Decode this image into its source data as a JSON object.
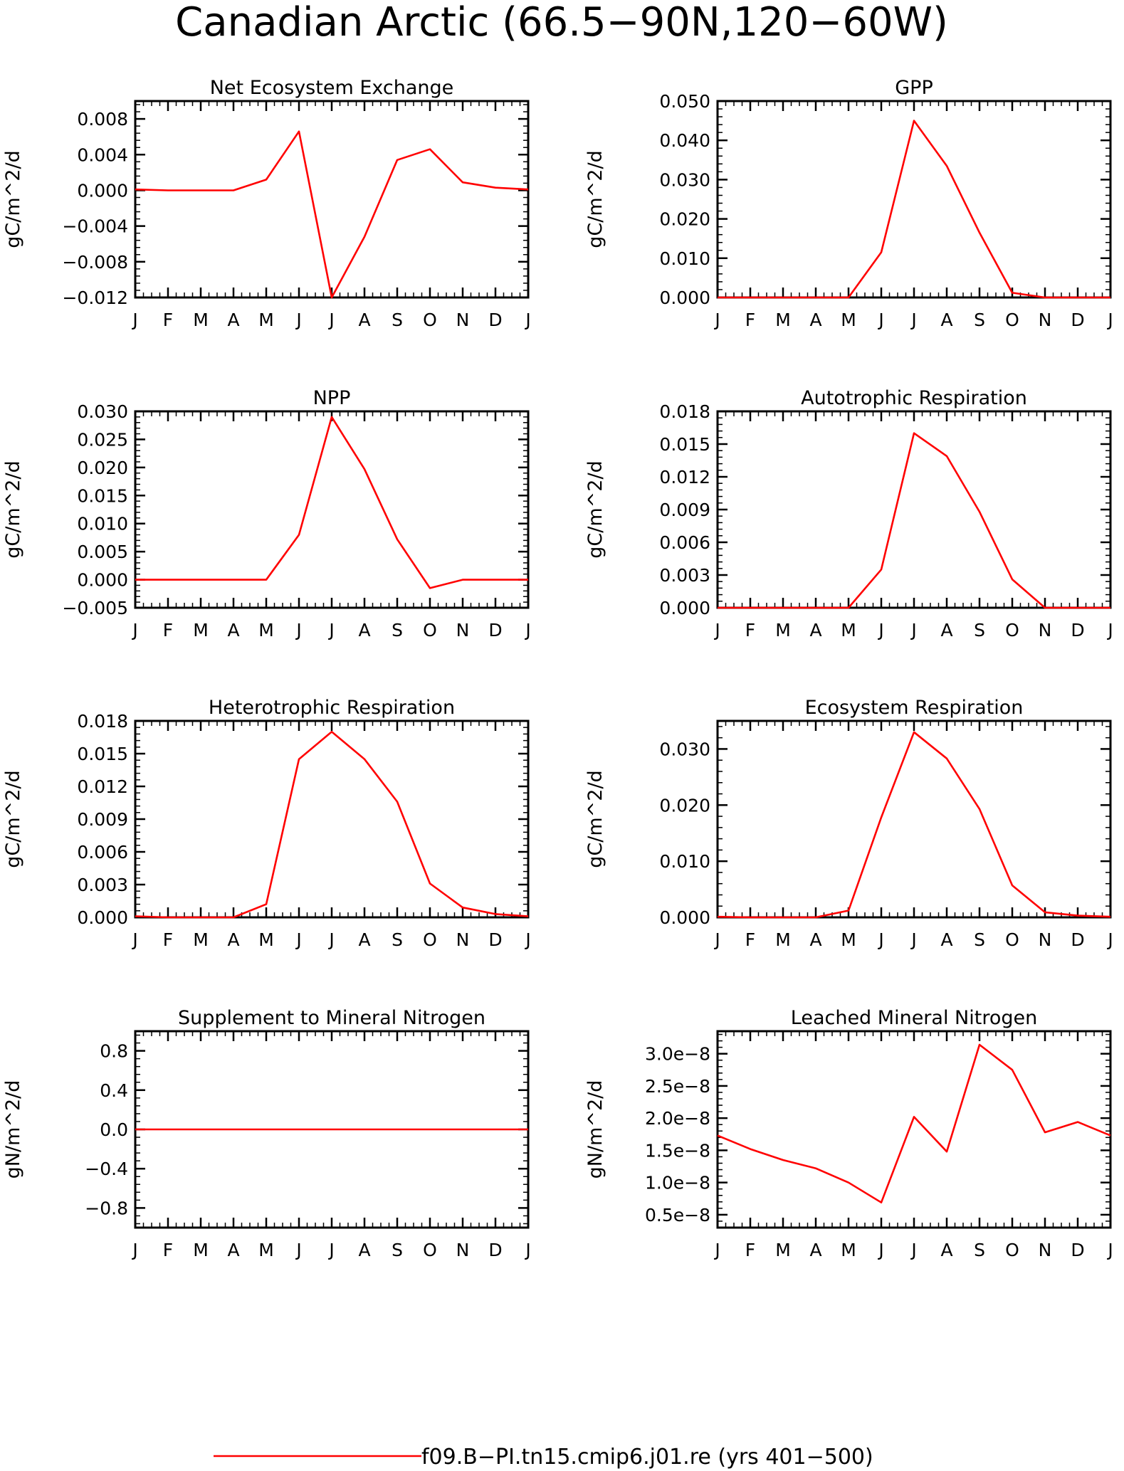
{
  "figure": {
    "title": "Canadian Arctic (66.5−90N,120−60W)",
    "legend_label": "f09.B−PI.tn15.cmip6.j01.re (yrs 401−500)",
    "line_color": "#ff0000"
  },
  "chart_data": [
    {
      "type": "line",
      "title": "Net Ecosystem Exchange",
      "ylabel": "gC/m^2/d",
      "xlabel": "",
      "categories": [
        "J",
        "F",
        "M",
        "A",
        "M",
        "J",
        "J",
        "A",
        "S",
        "O",
        "N",
        "D",
        "J"
      ],
      "ylim": [
        -0.012,
        0.01
      ],
      "yticks": [
        -0.012,
        -0.008,
        -0.004,
        0.0,
        0.004,
        0.008
      ],
      "ytick_labels": [
        "−0.012",
        "−0.008",
        "−0.004",
        "0.000",
        "0.004",
        "0.008"
      ],
      "series": [
        {
          "values": [
            0.0001,
            0.0,
            0.0,
            0.0,
            0.0012,
            0.0066,
            -0.012,
            -0.0052,
            0.0034,
            0.0046,
            0.0009,
            0.0003,
            0.0001
          ]
        }
      ]
    },
    {
      "type": "line",
      "title": "GPP",
      "ylabel": "gC/m^2/d",
      "xlabel": "",
      "categories": [
        "J",
        "F",
        "M",
        "A",
        "M",
        "J",
        "J",
        "A",
        "S",
        "O",
        "N",
        "D",
        "J"
      ],
      "ylim": [
        0.0,
        0.05
      ],
      "yticks": [
        0.0,
        0.01,
        0.02,
        0.03,
        0.04,
        0.05
      ],
      "ytick_labels": [
        "0.000",
        "0.010",
        "0.020",
        "0.030",
        "0.040",
        "0.050"
      ],
      "series": [
        {
          "values": [
            0.0,
            0.0,
            0.0,
            0.0,
            0.0,
            0.0115,
            0.045,
            0.0335,
            0.0165,
            0.0012,
            0.0,
            0.0,
            0.0
          ]
        }
      ]
    },
    {
      "type": "line",
      "title": "NPP",
      "ylabel": "gC/m^2/d",
      "xlabel": "",
      "categories": [
        "J",
        "F",
        "M",
        "A",
        "M",
        "J",
        "J",
        "A",
        "S",
        "O",
        "N",
        "D",
        "J"
      ],
      "ylim": [
        -0.005,
        0.03
      ],
      "yticks": [
        -0.005,
        0.0,
        0.005,
        0.01,
        0.015,
        0.02,
        0.025,
        0.03
      ],
      "ytick_labels": [
        "−0.005",
        "0.000",
        "0.005",
        "0.010",
        "0.015",
        "0.020",
        "0.025",
        "0.030"
      ],
      "series": [
        {
          "values": [
            0.0,
            0.0,
            0.0,
            0.0,
            0.0,
            0.008,
            0.029,
            0.0197,
            0.0072,
            -0.0015,
            0.0,
            0.0,
            0.0
          ]
        }
      ]
    },
    {
      "type": "line",
      "title": "Autotrophic Respiration",
      "ylabel": "gC/m^2/d",
      "xlabel": "",
      "categories": [
        "J",
        "F",
        "M",
        "A",
        "M",
        "J",
        "J",
        "A",
        "S",
        "O",
        "N",
        "D",
        "J"
      ],
      "ylim": [
        0.0,
        0.018
      ],
      "yticks": [
        0.0,
        0.003,
        0.006,
        0.009,
        0.012,
        0.015,
        0.018
      ],
      "ytick_labels": [
        "0.000",
        "0.003",
        "0.006",
        "0.009",
        "0.012",
        "0.015",
        "0.018"
      ],
      "series": [
        {
          "values": [
            0.0,
            0.0,
            0.0,
            0.0,
            0.0,
            0.0035,
            0.016,
            0.0139,
            0.0088,
            0.0026,
            0.0,
            0.0,
            0.0
          ]
        }
      ]
    },
    {
      "type": "line",
      "title": "Heterotrophic Respiration",
      "ylabel": "gC/m^2/d",
      "xlabel": "",
      "categories": [
        "J",
        "F",
        "M",
        "A",
        "M",
        "J",
        "J",
        "A",
        "S",
        "O",
        "N",
        "D",
        "J"
      ],
      "ylim": [
        0.0,
        0.018
      ],
      "yticks": [
        0.0,
        0.003,
        0.006,
        0.009,
        0.012,
        0.015,
        0.018
      ],
      "ytick_labels": [
        "0.000",
        "0.003",
        "0.006",
        "0.009",
        "0.012",
        "0.015",
        "0.018"
      ],
      "series": [
        {
          "values": [
            0.0001,
            0.0,
            0.0,
            0.0,
            0.0012,
            0.0145,
            0.017,
            0.0145,
            0.0106,
            0.0031,
            0.0009,
            0.0003,
            0.0001
          ]
        }
      ]
    },
    {
      "type": "line",
      "title": "Ecosystem Respiration",
      "ylabel": "gC/m^2/d",
      "xlabel": "",
      "categories": [
        "J",
        "F",
        "M",
        "A",
        "M",
        "J",
        "J",
        "A",
        "S",
        "O",
        "N",
        "D",
        "J"
      ],
      "ylim": [
        0.0,
        0.035
      ],
      "yticks": [
        0.0,
        0.01,
        0.02,
        0.03
      ],
      "ytick_labels": [
        "0.000",
        "0.010",
        "0.020",
        "0.030"
      ],
      "series": [
        {
          "values": [
            0.0001,
            0.0,
            0.0,
            0.0,
            0.0012,
            0.0178,
            0.033,
            0.0283,
            0.0193,
            0.0057,
            0.0009,
            0.0003,
            0.0001
          ]
        }
      ]
    },
    {
      "type": "line",
      "title": "Supplement to Mineral Nitrogen",
      "ylabel": "gN/m^2/d",
      "xlabel": "",
      "categories": [
        "J",
        "F",
        "M",
        "A",
        "M",
        "J",
        "J",
        "A",
        "S",
        "O",
        "N",
        "D",
        "J"
      ],
      "ylim": [
        -1.0,
        1.0
      ],
      "yticks": [
        -0.8,
        -0.4,
        0.0,
        0.4,
        0.8
      ],
      "ytick_labels": [
        "−0.8",
        "−0.4",
        "0.0",
        "0.4",
        "0.8"
      ],
      "series": [
        {
          "values": [
            0,
            0,
            0,
            0,
            0,
            0,
            0,
            0,
            0,
            0,
            0,
            0,
            0
          ]
        }
      ]
    },
    {
      "type": "line",
      "title": "Leached Mineral Nitrogen",
      "ylabel": "gN/m^2/d",
      "xlabel": "",
      "categories": [
        "J",
        "F",
        "M",
        "A",
        "M",
        "J",
        "J",
        "A",
        "S",
        "O",
        "N",
        "D",
        "J"
      ],
      "ylim": [
        3e-09,
        3.35e-08
      ],
      "yticks": [
        5e-09,
        1e-08,
        1.5e-08,
        2e-08,
        2.5e-08,
        3e-08
      ],
      "ytick_labels": [
        "0.5e−8",
        "1.0e−8",
        "1.5e−8",
        "2.0e−8",
        "2.5e−8",
        "3.0e−8"
      ],
      "series": [
        {
          "values": [
            1.73e-08,
            1.52e-08,
            1.35e-08,
            1.22e-08,
            1e-08,
            6.9e-09,
            2.02e-08,
            1.48e-08,
            3.14e-08,
            2.75e-08,
            1.78e-08,
            1.94e-08,
            1.73e-08
          ]
        }
      ]
    }
  ]
}
